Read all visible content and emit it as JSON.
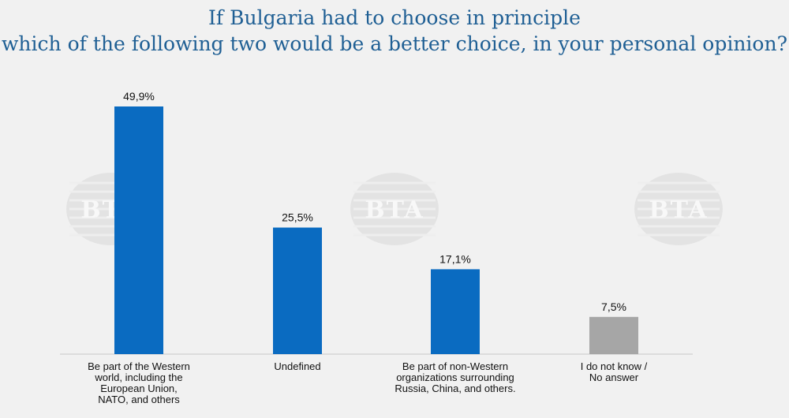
{
  "chart_data": {
    "type": "bar",
    "title_lines": [
      "If Bulgaria had to choose in principle",
      "which of the following two would be a better choice, in your personal opinion?"
    ],
    "categories": [
      [
        "Be part of the Western",
        "world, including the",
        "European Union,",
        "NATO, and others"
      ],
      [
        "Undefined"
      ],
      [
        "Be part of non-Western",
        "organizations surrounding",
        "Russia, China, and others."
      ],
      [
        "I do not know /",
        "No answer"
      ]
    ],
    "values": [
      49.9,
      25.5,
      17.1,
      7.5
    ],
    "data_labels": [
      "49,9%",
      "25,5%",
      "17,1%",
      "7,5%"
    ],
    "bar_colors": [
      "#0a6bc1",
      "#0a6bc1",
      "#0a6bc1",
      "#a6a6a6"
    ],
    "ylim": [
      0,
      50
    ],
    "xlabel": "",
    "ylabel": "",
    "grid": false
  },
  "watermark": {
    "text": "BTA"
  }
}
